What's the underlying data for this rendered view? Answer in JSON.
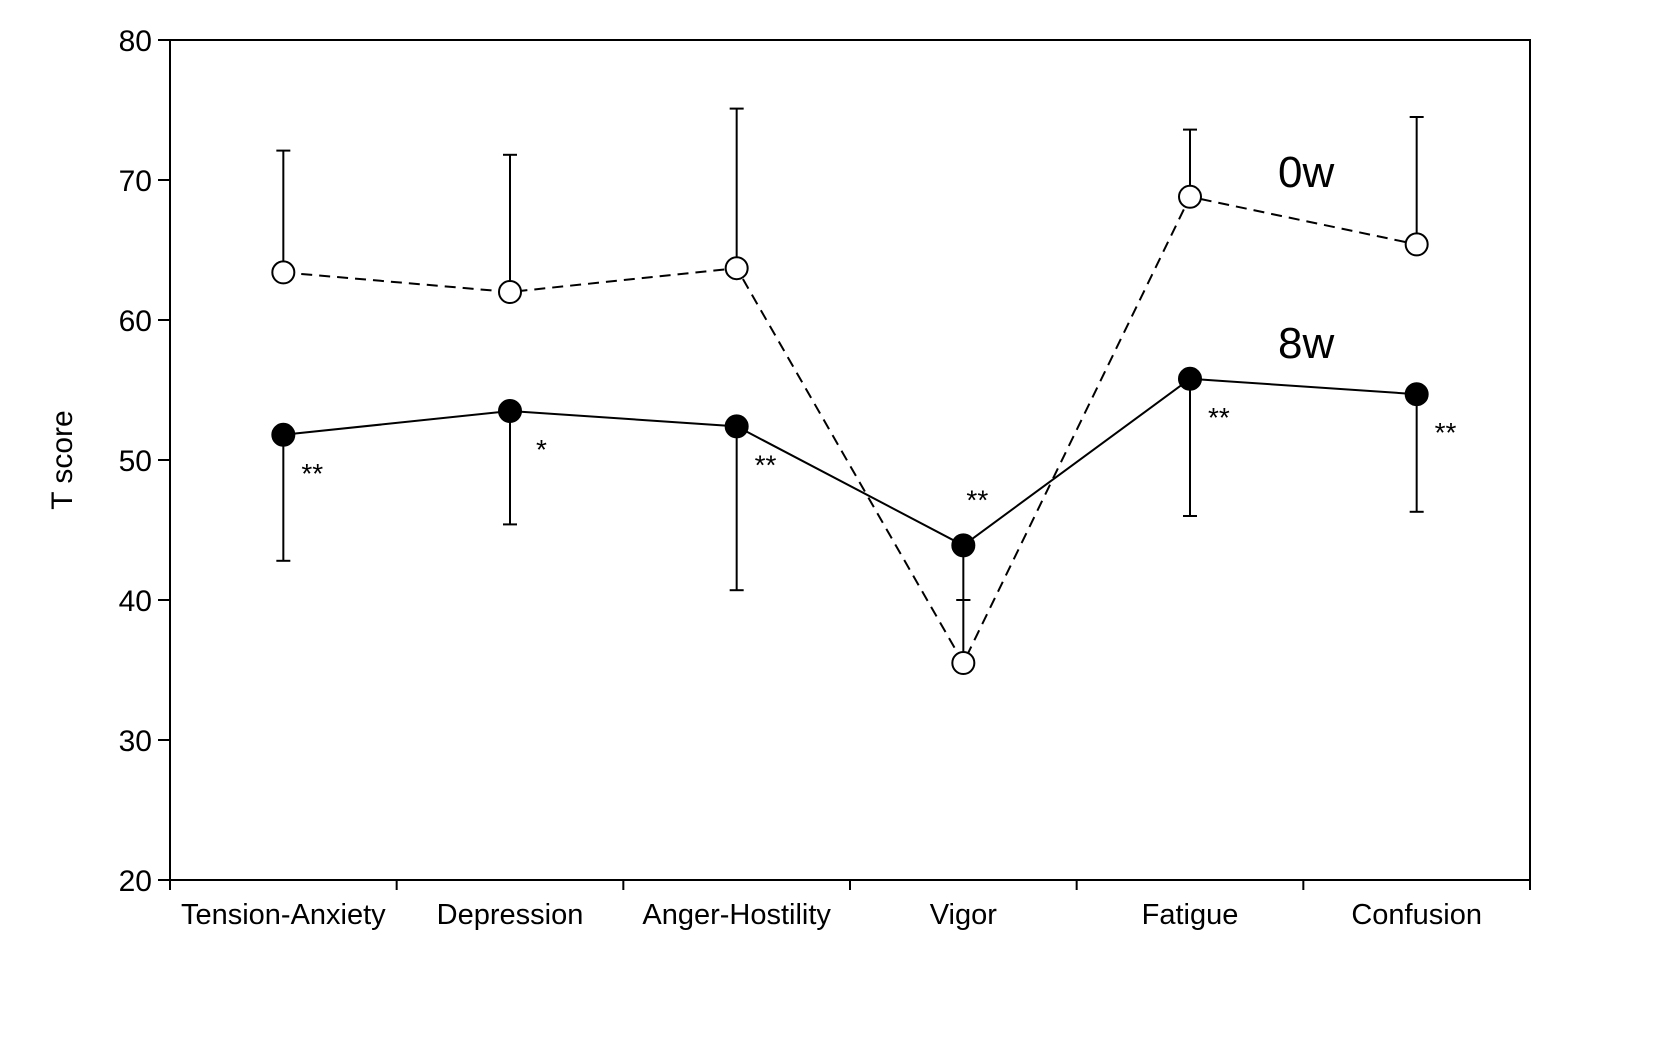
{
  "chart_data": {
    "type": "line",
    "title": "",
    "xlabel": "",
    "ylabel": "T score",
    "ylim": [
      20,
      80
    ],
    "yticks": [
      "20",
      "30",
      "40",
      "50",
      "60",
      "70",
      "80"
    ],
    "grid": false,
    "categories": [
      "Tension-Anxiety",
      "Depression",
      "Anger-Hostility",
      "Vigor",
      "Fatigue",
      "Confusion"
    ],
    "series": [
      {
        "name": "0w",
        "style": "dashed",
        "marker": "open-circle",
        "values": [
          63.4,
          62.0,
          63.7,
          35.5,
          68.8,
          65.4
        ],
        "error": [
          8.7,
          9.8,
          11.4,
          4.5,
          4.8,
          9.1
        ],
        "error_direction": "up"
      },
      {
        "name": "8w",
        "style": "solid",
        "marker": "filled-circle",
        "values": [
          51.8,
          53.5,
          52.4,
          43.9,
          55.8,
          54.7
        ],
        "error": [
          9.0,
          8.1,
          11.7,
          3.9,
          9.8,
          8.4
        ],
        "error_direction": "down"
      }
    ],
    "significance": [
      "**",
      "*",
      "**",
      "**",
      "**",
      "**"
    ]
  }
}
